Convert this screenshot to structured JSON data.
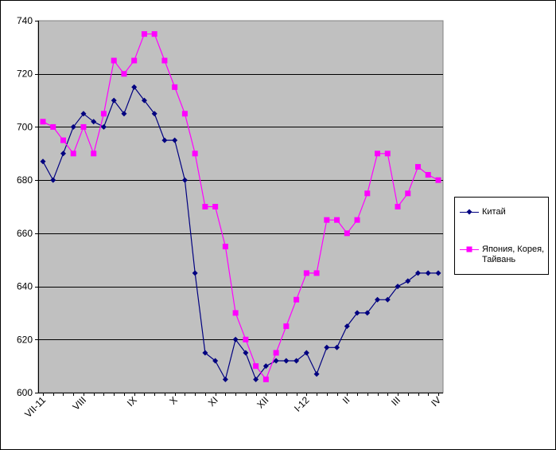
{
  "chart_data": {
    "type": "line",
    "title": "",
    "xlabel": "",
    "ylabel": "",
    "ylim": [
      600,
      740
    ],
    "yticks": [
      600,
      620,
      640,
      660,
      680,
      700,
      720,
      740
    ],
    "grid": "horizontal",
    "plot_background": "#c0c0c0",
    "legend_position": "right",
    "x_tick_labels": [
      {
        "index": 0,
        "label": "VII-11"
      },
      {
        "index": 4,
        "label": "VIII"
      },
      {
        "index": 9,
        "label": "IX"
      },
      {
        "index": 13,
        "label": "X"
      },
      {
        "index": 17,
        "label": "XI"
      },
      {
        "index": 22,
        "label": "XII"
      },
      {
        "index": 26,
        "label": "I-12"
      },
      {
        "index": 30,
        "label": "II"
      },
      {
        "index": 35,
        "label": "III"
      },
      {
        "index": 39,
        "label": "IV"
      }
    ],
    "x": [
      0,
      1,
      2,
      3,
      4,
      5,
      6,
      7,
      8,
      9,
      10,
      11,
      12,
      13,
      14,
      15,
      16,
      17,
      18,
      19,
      20,
      21,
      22,
      23,
      24,
      25,
      26,
      27,
      28,
      29,
      30,
      31,
      32,
      33,
      34,
      35,
      36,
      37,
      38,
      39
    ],
    "series": [
      {
        "name": "Китай",
        "color": "#000080",
        "marker": "diamond",
        "values": [
          687,
          680,
          690,
          700,
          705,
          702,
          700,
          710,
          705,
          715,
          710,
          705,
          695,
          695,
          680,
          645,
          615,
          612,
          605,
          620,
          615,
          605,
          610,
          612,
          612,
          612,
          615,
          607,
          617,
          617,
          625,
          630,
          630,
          635,
          635,
          640,
          642,
          645,
          645,
          645
        ]
      },
      {
        "name": "Япония, Корея, Тайвань",
        "color": "#ff00ff",
        "marker": "square",
        "values": [
          702,
          700,
          695,
          690,
          700,
          690,
          705,
          725,
          720,
          725,
          735,
          735,
          725,
          715,
          705,
          690,
          670,
          670,
          655,
          630,
          620,
          610,
          605,
          615,
          625,
          635,
          645,
          645,
          665,
          665,
          660,
          665,
          675,
          690,
          690,
          670,
          675,
          685,
          682,
          680
        ]
      }
    ]
  }
}
